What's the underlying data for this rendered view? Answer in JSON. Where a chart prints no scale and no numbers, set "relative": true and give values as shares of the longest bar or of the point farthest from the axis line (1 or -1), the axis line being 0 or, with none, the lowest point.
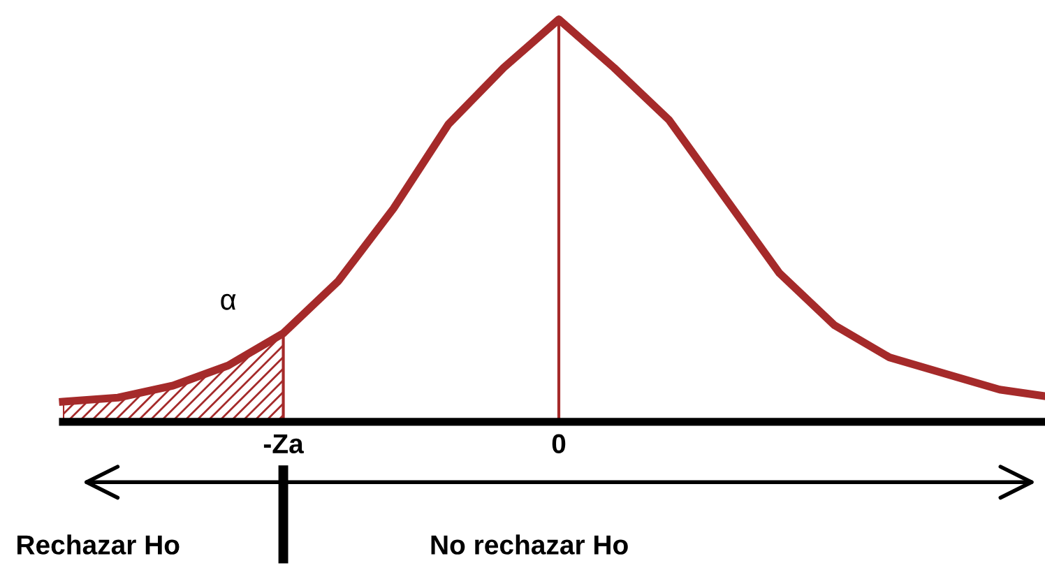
{
  "chart_data": {
    "type": "line",
    "relative": true,
    "categories": [
      null,
      null,
      null,
      null,
      "-Za",
      null,
      null,
      null,
      null,
      "0",
      null,
      null,
      null,
      null,
      null,
      null,
      null,
      null,
      null
    ],
    "series": [
      {
        "color": "#a52a2a",
        "values": [
          0.05,
          0.06,
          0.09,
          0.14,
          0.22,
          0.35,
          0.53,
          0.74,
          0.88,
          1.0,
          0.88,
          0.75,
          0.56,
          0.37,
          0.24,
          0.16,
          0.12,
          0.08,
          0.06
        ]
      },
      {
        "type": "area",
        "color": "#a52a2a",
        "values": [
          0.05,
          0.06,
          0.09,
          0.14,
          0.22,
          null,
          null,
          null,
          null,
          null,
          null,
          null,
          null,
          null,
          null,
          null,
          null,
          null,
          null
        ]
      }
    ],
    "ref_lines": [
      {
        "axis": "x",
        "value": "0",
        "color": "#a52a2a"
      }
    ],
    "annotations": [
      "α",
      "Rechazar Ho",
      "No rechazar Ho"
    ]
  }
}
